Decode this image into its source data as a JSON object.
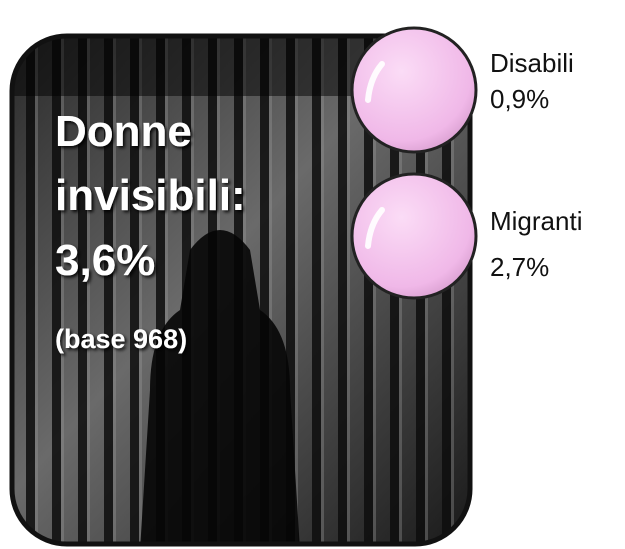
{
  "card": {
    "title": "Donne invisibili:",
    "value": "3,6%",
    "note": "(base 968)"
  },
  "bubbles": [
    {
      "label": "Disabili",
      "value": "0,9%"
    },
    {
      "label": "Migranti",
      "value": "2,7%"
    }
  ]
}
